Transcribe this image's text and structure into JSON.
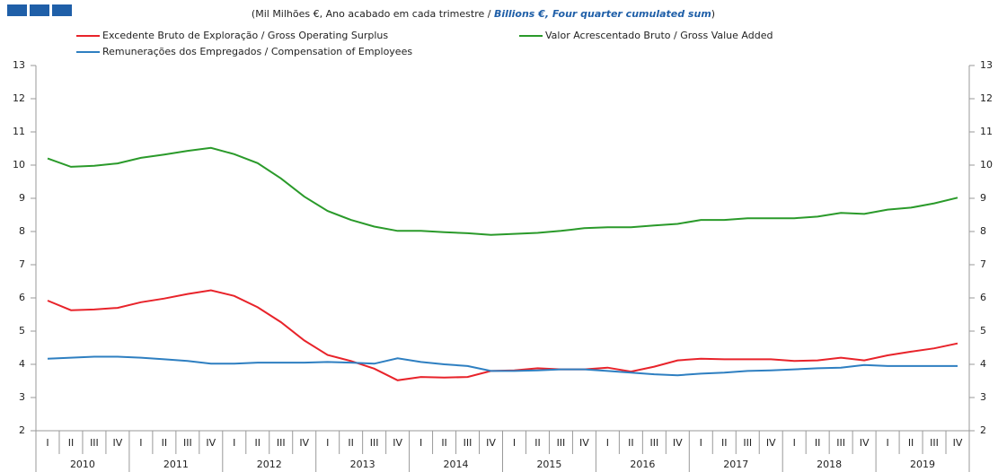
{
  "chart_data": {
    "type": "line",
    "subtitle": [
      "(Mil Milhões €, Ano acabado em cada trimestre / ",
      "Billions €, Four quarter cumulated sum",
      ")"
    ],
    "categories": [
      "I",
      "II",
      "III",
      "IV",
      "I",
      "II",
      "III",
      "IV",
      "I",
      "II",
      "III",
      "IV",
      "I",
      "II",
      "III",
      "IV",
      "I",
      "II",
      "III",
      "IV",
      "I",
      "II",
      "III",
      "IV",
      "I",
      "II",
      "III",
      "IV",
      "I",
      "II",
      "III",
      "IV",
      "I",
      "II",
      "III",
      "IV",
      "I",
      "II",
      "III",
      "IV"
    ],
    "years": [
      "2010",
      "2011",
      "2012",
      "2013",
      "2014",
      "2015",
      "2016",
      "2017",
      "2018",
      "2019"
    ],
    "series": [
      {
        "name": "Excedente Bruto de Exploração / Gross Operating Surplus",
        "color": "#e8232a",
        "values": [
          5.92,
          5.63,
          5.65,
          5.7,
          5.87,
          5.98,
          6.12,
          6.23,
          6.06,
          5.72,
          5.27,
          4.72,
          4.28,
          4.1,
          3.87,
          3.52,
          3.62,
          3.6,
          3.62,
          3.8,
          3.82,
          3.88,
          3.85,
          3.85,
          3.9,
          3.78,
          3.93,
          4.12,
          4.17,
          4.15,
          4.15,
          4.15,
          4.1,
          4.12,
          4.2,
          4.12,
          4.27,
          4.38,
          4.48,
          4.63
        ]
      },
      {
        "name": "Valor Acrescentado Bruto / Gross Value Added",
        "color": "#2a9a2a",
        "values": [
          10.2,
          9.95,
          9.98,
          10.05,
          10.22,
          10.32,
          10.43,
          10.52,
          10.33,
          10.06,
          9.6,
          9.05,
          8.62,
          8.35,
          8.15,
          8.02,
          8.02,
          7.98,
          7.95,
          7.9,
          7.93,
          7.96,
          8.02,
          8.1,
          8.13,
          8.13,
          8.18,
          8.23,
          8.35,
          8.35,
          8.4,
          8.4,
          8.4,
          8.45,
          8.56,
          8.53,
          8.66,
          8.72,
          8.85,
          9.02
        ]
      },
      {
        "name": "Remunerações dos Empregados / Compensation of Employees",
        "color": "#2e7fc1",
        "values": [
          4.17,
          4.2,
          4.23,
          4.23,
          4.2,
          4.15,
          4.1,
          4.02,
          4.02,
          4.05,
          4.05,
          4.05,
          4.07,
          4.05,
          4.02,
          4.18,
          4.07,
          4.0,
          3.95,
          3.8,
          3.8,
          3.82,
          3.85,
          3.85,
          3.8,
          3.75,
          3.7,
          3.67,
          3.72,
          3.75,
          3.8,
          3.82,
          3.85,
          3.88,
          3.9,
          3.98,
          3.95,
          3.95,
          3.95,
          3.95
        ]
      }
    ],
    "ylim": [
      2,
      13
    ],
    "yticks": [
      2,
      3,
      4,
      5,
      6,
      7,
      8,
      9,
      10,
      11,
      12,
      13
    ]
  }
}
